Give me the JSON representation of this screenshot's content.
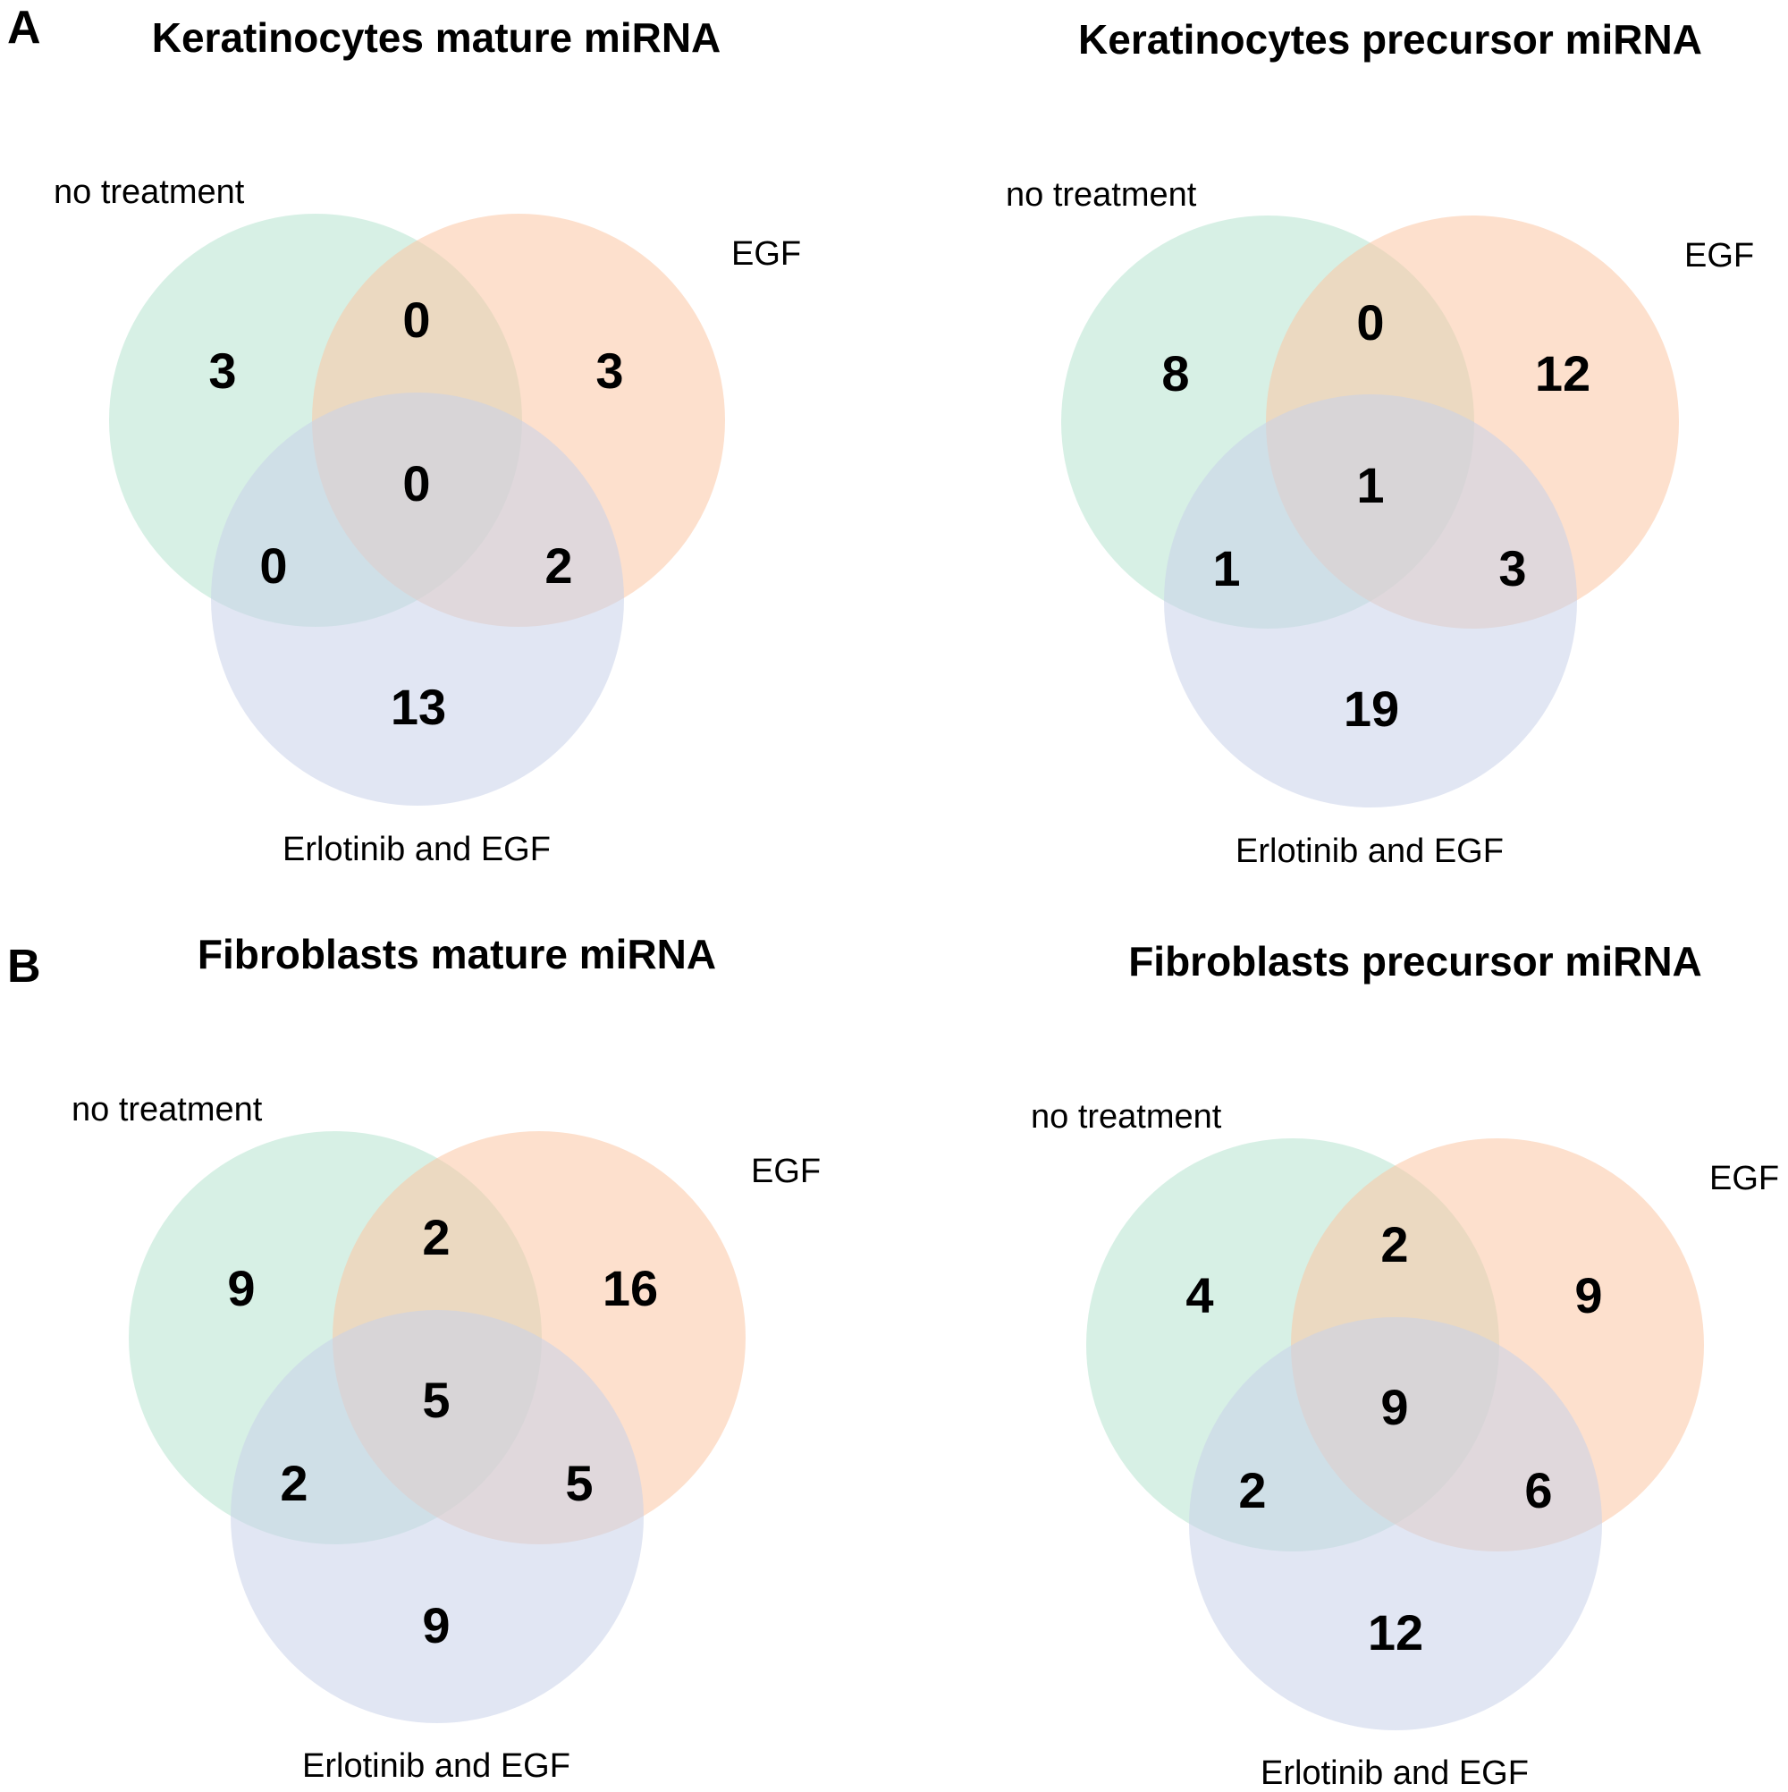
{
  "panel_labels": [
    "A",
    "B"
  ],
  "colors": {
    "set_a": "#b7e4cf",
    "set_b": "#fbc7a4",
    "set_c": "#c9d2ea"
  },
  "venns": [
    {
      "title": "Keratinocytes mature miRNA",
      "labels": {
        "a": "no treatment",
        "b": "EGF",
        "c": "Erlotinib and EGF"
      },
      "counts": {
        "a_only": "3",
        "b_only": "3",
        "c_only": "13",
        "ab": "0",
        "ac": "0",
        "bc": "2",
        "abc": "0"
      }
    },
    {
      "title": "Keratinocytes precursor miRNA",
      "labels": {
        "a": "no treatment",
        "b": "EGF",
        "c": "Erlotinib and EGF"
      },
      "counts": {
        "a_only": "8",
        "b_only": "12",
        "c_only": "19",
        "ab": "0",
        "ac": "1",
        "bc": "3",
        "abc": "1"
      }
    },
    {
      "title": "Fibroblasts mature miRNA",
      "labels": {
        "a": "no treatment",
        "b": "EGF",
        "c": "Erlotinib and EGF"
      },
      "counts": {
        "a_only": "9",
        "b_only": "16",
        "c_only": "9",
        "ab": "2",
        "ac": "2",
        "bc": "5",
        "abc": "5"
      }
    },
    {
      "title": "Fibroblasts precursor miRNA",
      "labels": {
        "a": "no treatment",
        "b": "EGF",
        "c": "Erlotinib and EGF"
      },
      "counts": {
        "a_only": "4",
        "b_only": "9",
        "c_only": "12",
        "ab": "2",
        "ac": "2",
        "bc": "6",
        "abc": "9"
      }
    }
  ]
}
